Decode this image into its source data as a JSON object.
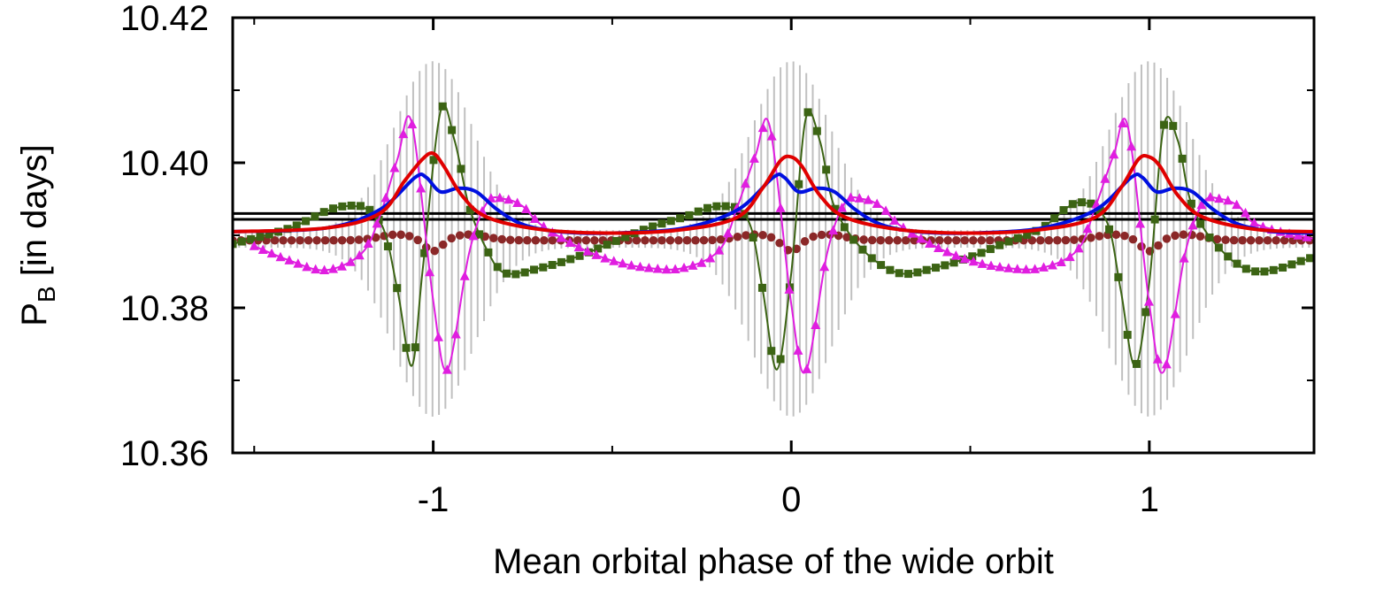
{
  "chart_data": {
    "type": "line",
    "title": "",
    "xlabel": "Mean orbital phase of the wide orbit",
    "ylabel_main": "P",
    "ylabel_sub": "B",
    "ylabel_rest": " [in days]",
    "xlim": [
      -1.56,
      1.46
    ],
    "ylim": [
      10.36,
      10.42
    ],
    "x_ticks": [
      {
        "value": -1,
        "label": "-1"
      },
      {
        "value": 0,
        "label": "0"
      },
      {
        "value": 1,
        "label": "1"
      }
    ],
    "x_minor_ticks": [
      -1.5,
      -0.5,
      0.5
    ],
    "y_ticks": [
      {
        "value": 10.36,
        "label": "10.36"
      },
      {
        "value": 10.38,
        "label": "10.38"
      },
      {
        "value": 10.4,
        "label": "10.40"
      },
      {
        "value": 10.42,
        "label": "10.42"
      }
    ],
    "y_minor_ticks": [
      10.37,
      10.39,
      10.41
    ],
    "grid": false,
    "legend": "none",
    "reference_lines": [
      {
        "name": "upper-mean",
        "y": 10.393,
        "color": "#000000"
      },
      {
        "name": "lower-mean",
        "y": 10.3922,
        "color": "#000000"
      }
    ],
    "gray_band": {
      "name": "instantaneous-period-range",
      "color": "#c0c0c0",
      "baseline": 10.3895,
      "halfwidth_min": 0.0012,
      "halfwidth_max": 0.0245,
      "peak_phases": [
        -1,
        0,
        1
      ],
      "peak_width": 0.11,
      "spacing": 0.018
    },
    "series": [
      {
        "name": "magenta-triangles",
        "color": "#e01ee0",
        "marker": "triangle",
        "line_width": 2,
        "x": [
          -1.5,
          -1.4,
          -1.3,
          -1.2,
          -1.15,
          -1.1,
          -1.06,
          -1.0,
          -0.96,
          -0.9,
          -0.85,
          -0.8,
          -0.75,
          -0.7,
          -0.6,
          -0.5,
          -0.4,
          -0.3,
          -0.2,
          -0.15,
          -0.1,
          -0.06,
          0.0,
          0.04,
          0.1,
          0.15,
          0.2,
          0.25,
          0.3,
          0.4,
          0.5,
          0.6,
          0.7,
          0.8,
          0.85,
          0.9,
          0.94,
          1.0,
          1.04,
          1.1,
          1.15,
          1.2,
          1.25,
          1.3,
          1.46
        ],
        "values": [
          10.3885,
          10.3865,
          10.3852,
          10.3875,
          10.3925,
          10.4005,
          10.4055,
          10.381,
          10.3715,
          10.3875,
          10.3945,
          10.395,
          10.394,
          10.3915,
          10.3885,
          10.3865,
          10.3855,
          10.3855,
          10.388,
          10.394,
          10.401,
          10.405,
          10.3805,
          10.3712,
          10.3875,
          10.3945,
          10.395,
          10.394,
          10.3915,
          10.3885,
          10.3865,
          10.3855,
          10.3855,
          10.388,
          10.394,
          10.401,
          10.405,
          10.3805,
          10.3712,
          10.3875,
          10.3945,
          10.395,
          10.394,
          10.3915,
          10.3895
        ]
      },
      {
        "name": "green-squares",
        "color": "#3c6414",
        "marker": "square",
        "line_width": 2,
        "x": [
          -1.56,
          -1.4,
          -1.25,
          -1.15,
          -1.1,
          -1.06,
          -1.03,
          -0.98,
          -0.94,
          -0.9,
          -0.85,
          -0.8,
          -0.7,
          -0.6,
          -0.5,
          -0.4,
          -0.3,
          -0.2,
          -0.12,
          -0.08,
          -0.04,
          0.0,
          0.04,
          0.08,
          0.12,
          0.2,
          0.3,
          0.4,
          0.5,
          0.6,
          0.7,
          0.8,
          0.88,
          0.92,
          0.96,
          1.0,
          1.04,
          1.08,
          1.12,
          1.2,
          1.3,
          1.46
        ],
        "values": [
          10.3888,
          10.391,
          10.394,
          10.392,
          10.3825,
          10.372,
          10.385,
          10.407,
          10.403,
          10.394,
          10.388,
          10.3848,
          10.3855,
          10.387,
          10.389,
          10.391,
          10.3925,
          10.394,
          10.392,
          10.3825,
          10.3715,
          10.3848,
          10.406,
          10.403,
          10.394,
          10.388,
          10.3848,
          10.3855,
          10.387,
          10.389,
          10.391,
          10.3945,
          10.392,
          10.3825,
          10.372,
          10.3835,
          10.405,
          10.403,
          10.394,
          10.388,
          10.385,
          10.387
        ]
      },
      {
        "name": "blue-line",
        "color": "#0010e0",
        "marker": "none",
        "line_width": 4,
        "x": [
          -1.56,
          -1.3,
          -1.15,
          -1.05,
          -1.02,
          -0.98,
          -0.93,
          -0.88,
          -0.82,
          -0.75,
          -0.65,
          -0.5,
          -0.3,
          -0.15,
          -0.05,
          -0.02,
          0.02,
          0.07,
          0.12,
          0.18,
          0.25,
          0.35,
          0.5,
          0.7,
          0.85,
          0.95,
          0.98,
          1.02,
          1.07,
          1.12,
          1.18,
          1.25,
          1.35,
          1.46
        ],
        "values": [
          10.3905,
          10.391,
          10.3935,
          10.398,
          10.398,
          10.396,
          10.3965,
          10.396,
          10.3935,
          10.3915,
          10.3905,
          10.3903,
          10.391,
          10.3935,
          10.398,
          10.398,
          10.396,
          10.3965,
          10.396,
          10.3935,
          10.3915,
          10.3905,
          10.3903,
          10.391,
          10.3935,
          10.398,
          10.398,
          10.396,
          10.3965,
          10.396,
          10.3935,
          10.3915,
          10.3905,
          10.3903
        ]
      },
      {
        "name": "red-line",
        "color": "#e00000",
        "marker": "none",
        "line_width": 4,
        "x": [
          -1.56,
          -1.3,
          -1.15,
          -1.08,
          -1.03,
          -1.0,
          -0.97,
          -0.92,
          -0.85,
          -0.7,
          -0.5,
          -0.3,
          -0.15,
          -0.08,
          -0.03,
          0.0,
          0.03,
          0.08,
          0.15,
          0.3,
          0.5,
          0.7,
          0.85,
          0.92,
          0.97,
          1.0,
          1.03,
          1.08,
          1.15,
          1.3,
          1.46
        ],
        "values": [
          10.3905,
          10.391,
          10.393,
          10.3975,
          10.4005,
          10.4013,
          10.3995,
          10.3955,
          10.3925,
          10.3908,
          10.3903,
          10.3908,
          10.3925,
          10.3965,
          10.4003,
          10.4008,
          10.3995,
          10.3955,
          10.3925,
          10.3908,
          10.3903,
          10.3908,
          10.3925,
          10.3965,
          10.4005,
          10.4008,
          10.3995,
          10.3955,
          10.3925,
          10.3908,
          10.3905
        ]
      },
      {
        "name": "brown-circles",
        "color": "#8b2828",
        "marker": "circle",
        "line_width": 0,
        "base": 10.3893,
        "bump": 0.0008,
        "dip": 0.0016,
        "spacing": 0.0235
      }
    ]
  }
}
